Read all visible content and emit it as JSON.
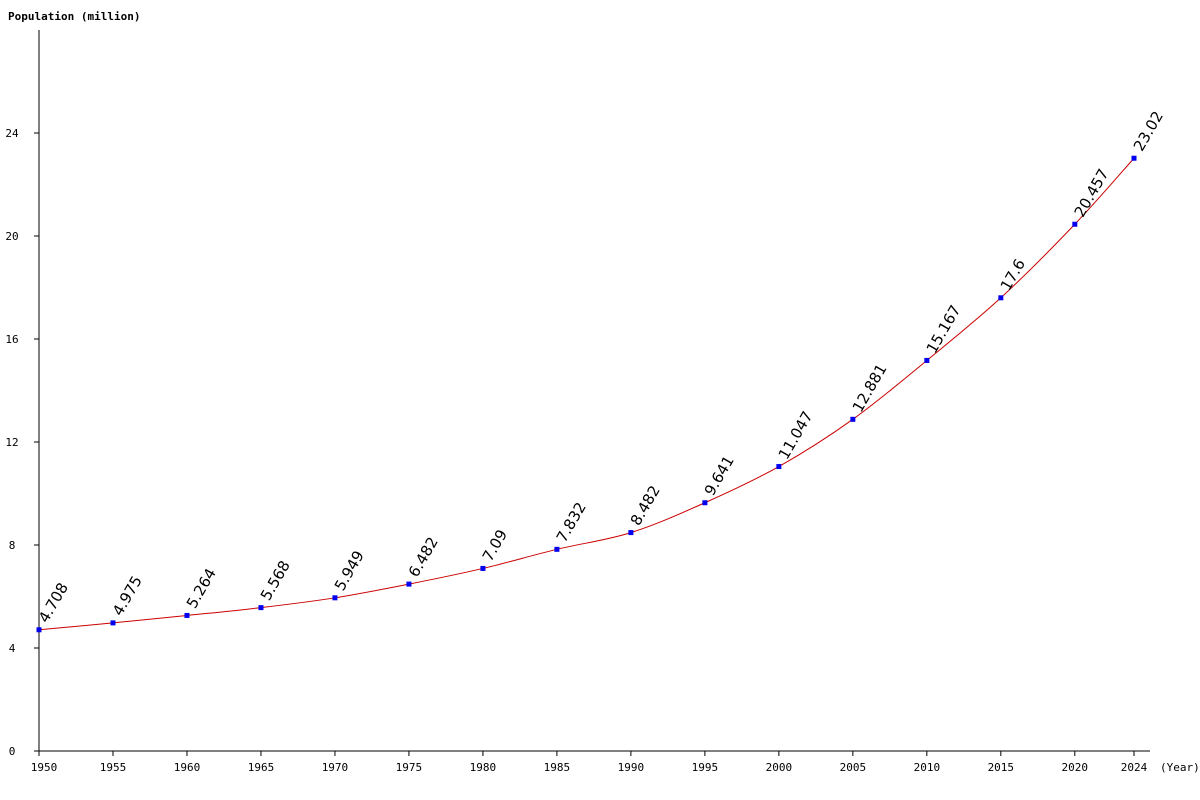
{
  "chart_data": {
    "type": "line",
    "ylabel": "Population (million)",
    "xlabel": "(Year)",
    "ylim": [
      0,
      28
    ],
    "yticks": [
      0,
      4,
      8,
      12,
      16,
      20,
      24
    ],
    "grid": false,
    "series": [
      {
        "x": [
          1950,
          1955,
          1960,
          1965,
          1970,
          1975,
          1980,
          1985,
          1990,
          1995,
          2000,
          2005,
          2010,
          2015,
          2020,
          2024
        ],
        "values": [
          4.708,
          4.975,
          5.264,
          5.568,
          5.949,
          6.482,
          7.09,
          7.832,
          8.482,
          9.641,
          11.047,
          12.881,
          15.167,
          17.6,
          20.457,
          23.02
        ],
        "labels": [
          "4.708",
          "4.975",
          "5.264",
          "5.568",
          "5.949",
          "6.482",
          "7.09",
          "7.832",
          "8.482",
          "9.641",
          "11.047",
          "12.881",
          "15.167",
          "17.6",
          "20.457",
          "23.02"
        ],
        "color": "#cc0000",
        "marker_color": "#0000ee"
      }
    ]
  }
}
